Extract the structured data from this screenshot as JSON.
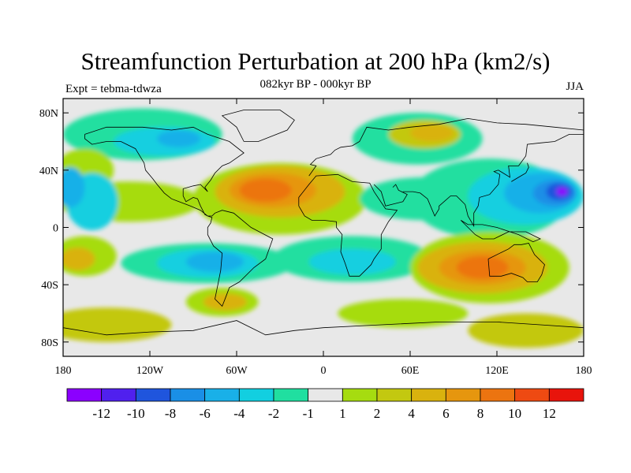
{
  "title": "Streamfunction Perturbation at 200 hPa (km2/s)",
  "left_label": "Expt = tebma-tdwza",
  "center_label": "082kyr BP - 000kyr BP",
  "right_label": "JJA",
  "lat_ticks": [
    "80N",
    "40N",
    "0",
    "40S",
    "80S"
  ],
  "lon_ticks": [
    "180",
    "120W",
    "60W",
    "0",
    "60E",
    "120E",
    "180"
  ],
  "colorbar": {
    "colors": [
      "#8b00ff",
      "#5020ee",
      "#1f55dd",
      "#1a8fe6",
      "#19b0e8",
      "#12cfe0",
      "#20dfa0",
      "#e8e8e8",
      "#a6dc10",
      "#c3c810",
      "#d9b20e",
      "#e6960e",
      "#ec7410",
      "#ee4a12",
      "#e8140c"
    ],
    "labels": [
      "-12",
      "-10",
      "-8",
      "-6",
      "-4",
      "-2",
      "-1",
      "1",
      "2",
      "4",
      "6",
      "8",
      "10",
      "12"
    ]
  },
  "blobs": [
    {
      "c": "#20dfa0",
      "lon": -125,
      "lat": 65,
      "rx": 55,
      "ry": 18
    },
    {
      "c": "#12cfe0",
      "lon": -110,
      "lat": 60,
      "rx": 35,
      "ry": 10
    },
    {
      "c": "#19b0e8",
      "lon": -100,
      "lat": 62,
      "rx": 15,
      "ry": 6
    },
    {
      "c": "#20dfa0",
      "lon": 65,
      "lat": 62,
      "rx": 45,
      "ry": 18
    },
    {
      "c": "#c3c810",
      "lon": 70,
      "lat": 65,
      "rx": 25,
      "ry": 10
    },
    {
      "c": "#d9b20e",
      "lon": 75,
      "lat": 66,
      "rx": 15,
      "ry": 6
    },
    {
      "c": "#a6dc10",
      "lon": -30,
      "lat": 20,
      "rx": 60,
      "ry": 25
    },
    {
      "c": "#d9b20e",
      "lon": -30,
      "lat": 25,
      "rx": 45,
      "ry": 18
    },
    {
      "c": "#e6960e",
      "lon": -35,
      "lat": 26,
      "rx": 30,
      "ry": 12
    },
    {
      "c": "#ec7410",
      "lon": -40,
      "lat": 26,
      "rx": 18,
      "ry": 8
    },
    {
      "c": "#a6dc10",
      "lon": -165,
      "lat": 40,
      "rx": 20,
      "ry": 15
    },
    {
      "c": "#a6dc10",
      "lon": -135,
      "lat": 18,
      "rx": 50,
      "ry": 14
    },
    {
      "c": "#12cfe0",
      "lon": -160,
      "lat": 18,
      "rx": 18,
      "ry": 20
    },
    {
      "c": "#19b0e8",
      "lon": -175,
      "lat": 28,
      "rx": 10,
      "ry": 14
    },
    {
      "c": "#20dfa0",
      "lon": 70,
      "lat": 20,
      "rx": 45,
      "ry": 15
    },
    {
      "c": "#20dfa0",
      "lon": 115,
      "lat": 20,
      "rx": 55,
      "ry": 28
    },
    {
      "c": "#12cfe0",
      "lon": 140,
      "lat": 22,
      "rx": 40,
      "ry": 20
    },
    {
      "c": "#19b0e8",
      "lon": 150,
      "lat": 24,
      "rx": 25,
      "ry": 14
    },
    {
      "c": "#1a8fe6",
      "lon": 160,
      "lat": 24,
      "rx": 15,
      "ry": 9
    },
    {
      "c": "#1f55dd",
      "lon": 163,
      "lat": 25,
      "rx": 9,
      "ry": 6
    },
    {
      "c": "#8b00ff",
      "lon": 165,
      "lat": 25,
      "rx": 4,
      "ry": 3
    },
    {
      "c": "#20dfa0",
      "lon": -80,
      "lat": -25,
      "rx": 60,
      "ry": 14
    },
    {
      "c": "#12cfe0",
      "lon": -80,
      "lat": -25,
      "rx": 35,
      "ry": 10
    },
    {
      "c": "#19b0e8",
      "lon": -75,
      "lat": -24,
      "rx": 20,
      "ry": 7
    },
    {
      "c": "#20dfa0",
      "lon": 20,
      "lat": -22,
      "rx": 55,
      "ry": 16
    },
    {
      "c": "#12cfe0",
      "lon": 20,
      "lat": -24,
      "rx": 30,
      "ry": 9
    },
    {
      "c": "#a6dc10",
      "lon": -165,
      "lat": -20,
      "rx": 22,
      "ry": 14
    },
    {
      "c": "#d9b20e",
      "lon": -170,
      "lat": -22,
      "rx": 12,
      "ry": 8
    },
    {
      "c": "#a6dc10",
      "lon": -70,
      "lat": -52,
      "rx": 25,
      "ry": 10
    },
    {
      "c": "#d9b20e",
      "lon": -68,
      "lat": -52,
      "rx": 15,
      "ry": 6
    },
    {
      "c": "#a6dc10",
      "lon": 115,
      "lat": -28,
      "rx": 55,
      "ry": 25
    },
    {
      "c": "#d9b20e",
      "lon": 110,
      "lat": -28,
      "rx": 45,
      "ry": 18
    },
    {
      "c": "#e6960e",
      "lon": 110,
      "lat": -28,
      "rx": 30,
      "ry": 12
    },
    {
      "c": "#ec7410",
      "lon": 110,
      "lat": -28,
      "rx": 18,
      "ry": 8
    },
    {
      "c": "#a6dc10",
      "lon": 55,
      "lat": -60,
      "rx": 45,
      "ry": 10
    },
    {
      "c": "#c3c810",
      "lon": -150,
      "lat": -68,
      "rx": 45,
      "ry": 12
    },
    {
      "c": "#c3c810",
      "lon": 140,
      "lat": -72,
      "rx": 40,
      "ry": 12
    }
  ],
  "coastlines": [
    "-165,65 -150,70 -140,70 -125,70 -105,68 -90,70 -80,65 -65,60 -55,52 -65,45 -70,43 -75,38 -78,33 -82,28 -80,25 -85,30 -90,29 -97,27 -97,22 -95,18 -90,21 -87,20 -85,15 -82,9 -80,8 -77,8 -75,10 -70,12 -62,10 -50,0 -35,-8 -40,-22 -48,-28 -58,-38 -65,-42 -68,-50 -70,-55 -75,-50 -73,-40 -71,-30 -70,-18 -76,-13 -80,-5 -80,0 -78,3 -77,7 -80,8 -85,12 -92,15 -105,20 -110,24 -115,30 -118,34 -123,40 -124,45 -130,55 -140,60 -150,60 -160,58 -165,62 -165,65",
    "-55,60 -45,60 -25,68 -20,75 -30,82 -55,82 -70,78 -60,70 -55,60",
    "-10,36 -5,43 -9,44 -5,48 5,51 8,54 12,56 20,57 25,60 30,70 45,68 60,70 80,72 100,76 120,73 140,72 160,70 180,68",
    "-17,15 -17,21 -10,30 -5,36 10,37 20,32 32,31 35,25 43,13 51,12 45,4 40,-5 40,-15 35,-22 33,-26 25,-34 18,-34 15,-25 12,-17 13,-5 9,0 9,4 0,5 -8,5 -13,8 -17,15",
    "35,30 40,25 43,15 55,18 58,23 52,26 50,30 48,28",
    "55,25 62,25 67,24 72,20 77,8 80,13 80,15 88,22 92,22 98,16 100,8 104,1 104,10 107,15 108,21 115,23 121,30 122,37 118,39 121,40 129,35 128,43 135,43 140,50 141,58 150,59 160,60 170,65 180,65",
    "130,32 135,35 140,38 142,42 141,45",
    "114,-22 115,-34 123,-34 130,-32 138,-35 141,-38 148,-38 151,-33 153,-26 146,-19 142,-11 137,-12 132,-12 128,-15 122,-18 114,-22",
    "95,5 105,-5 110,-8 118,-8 128,-3 140,-3 150,-8 145,-10 135,-5 120,0 110,2 100,2 95,5",
    "-180,-70 -150,-75 -120,-73 -90,-72 -60,-65 -40,-75 -20,-72 0,-70 40,-68 80,-66 120,-66 150,-68 180,-70"
  ]
}
